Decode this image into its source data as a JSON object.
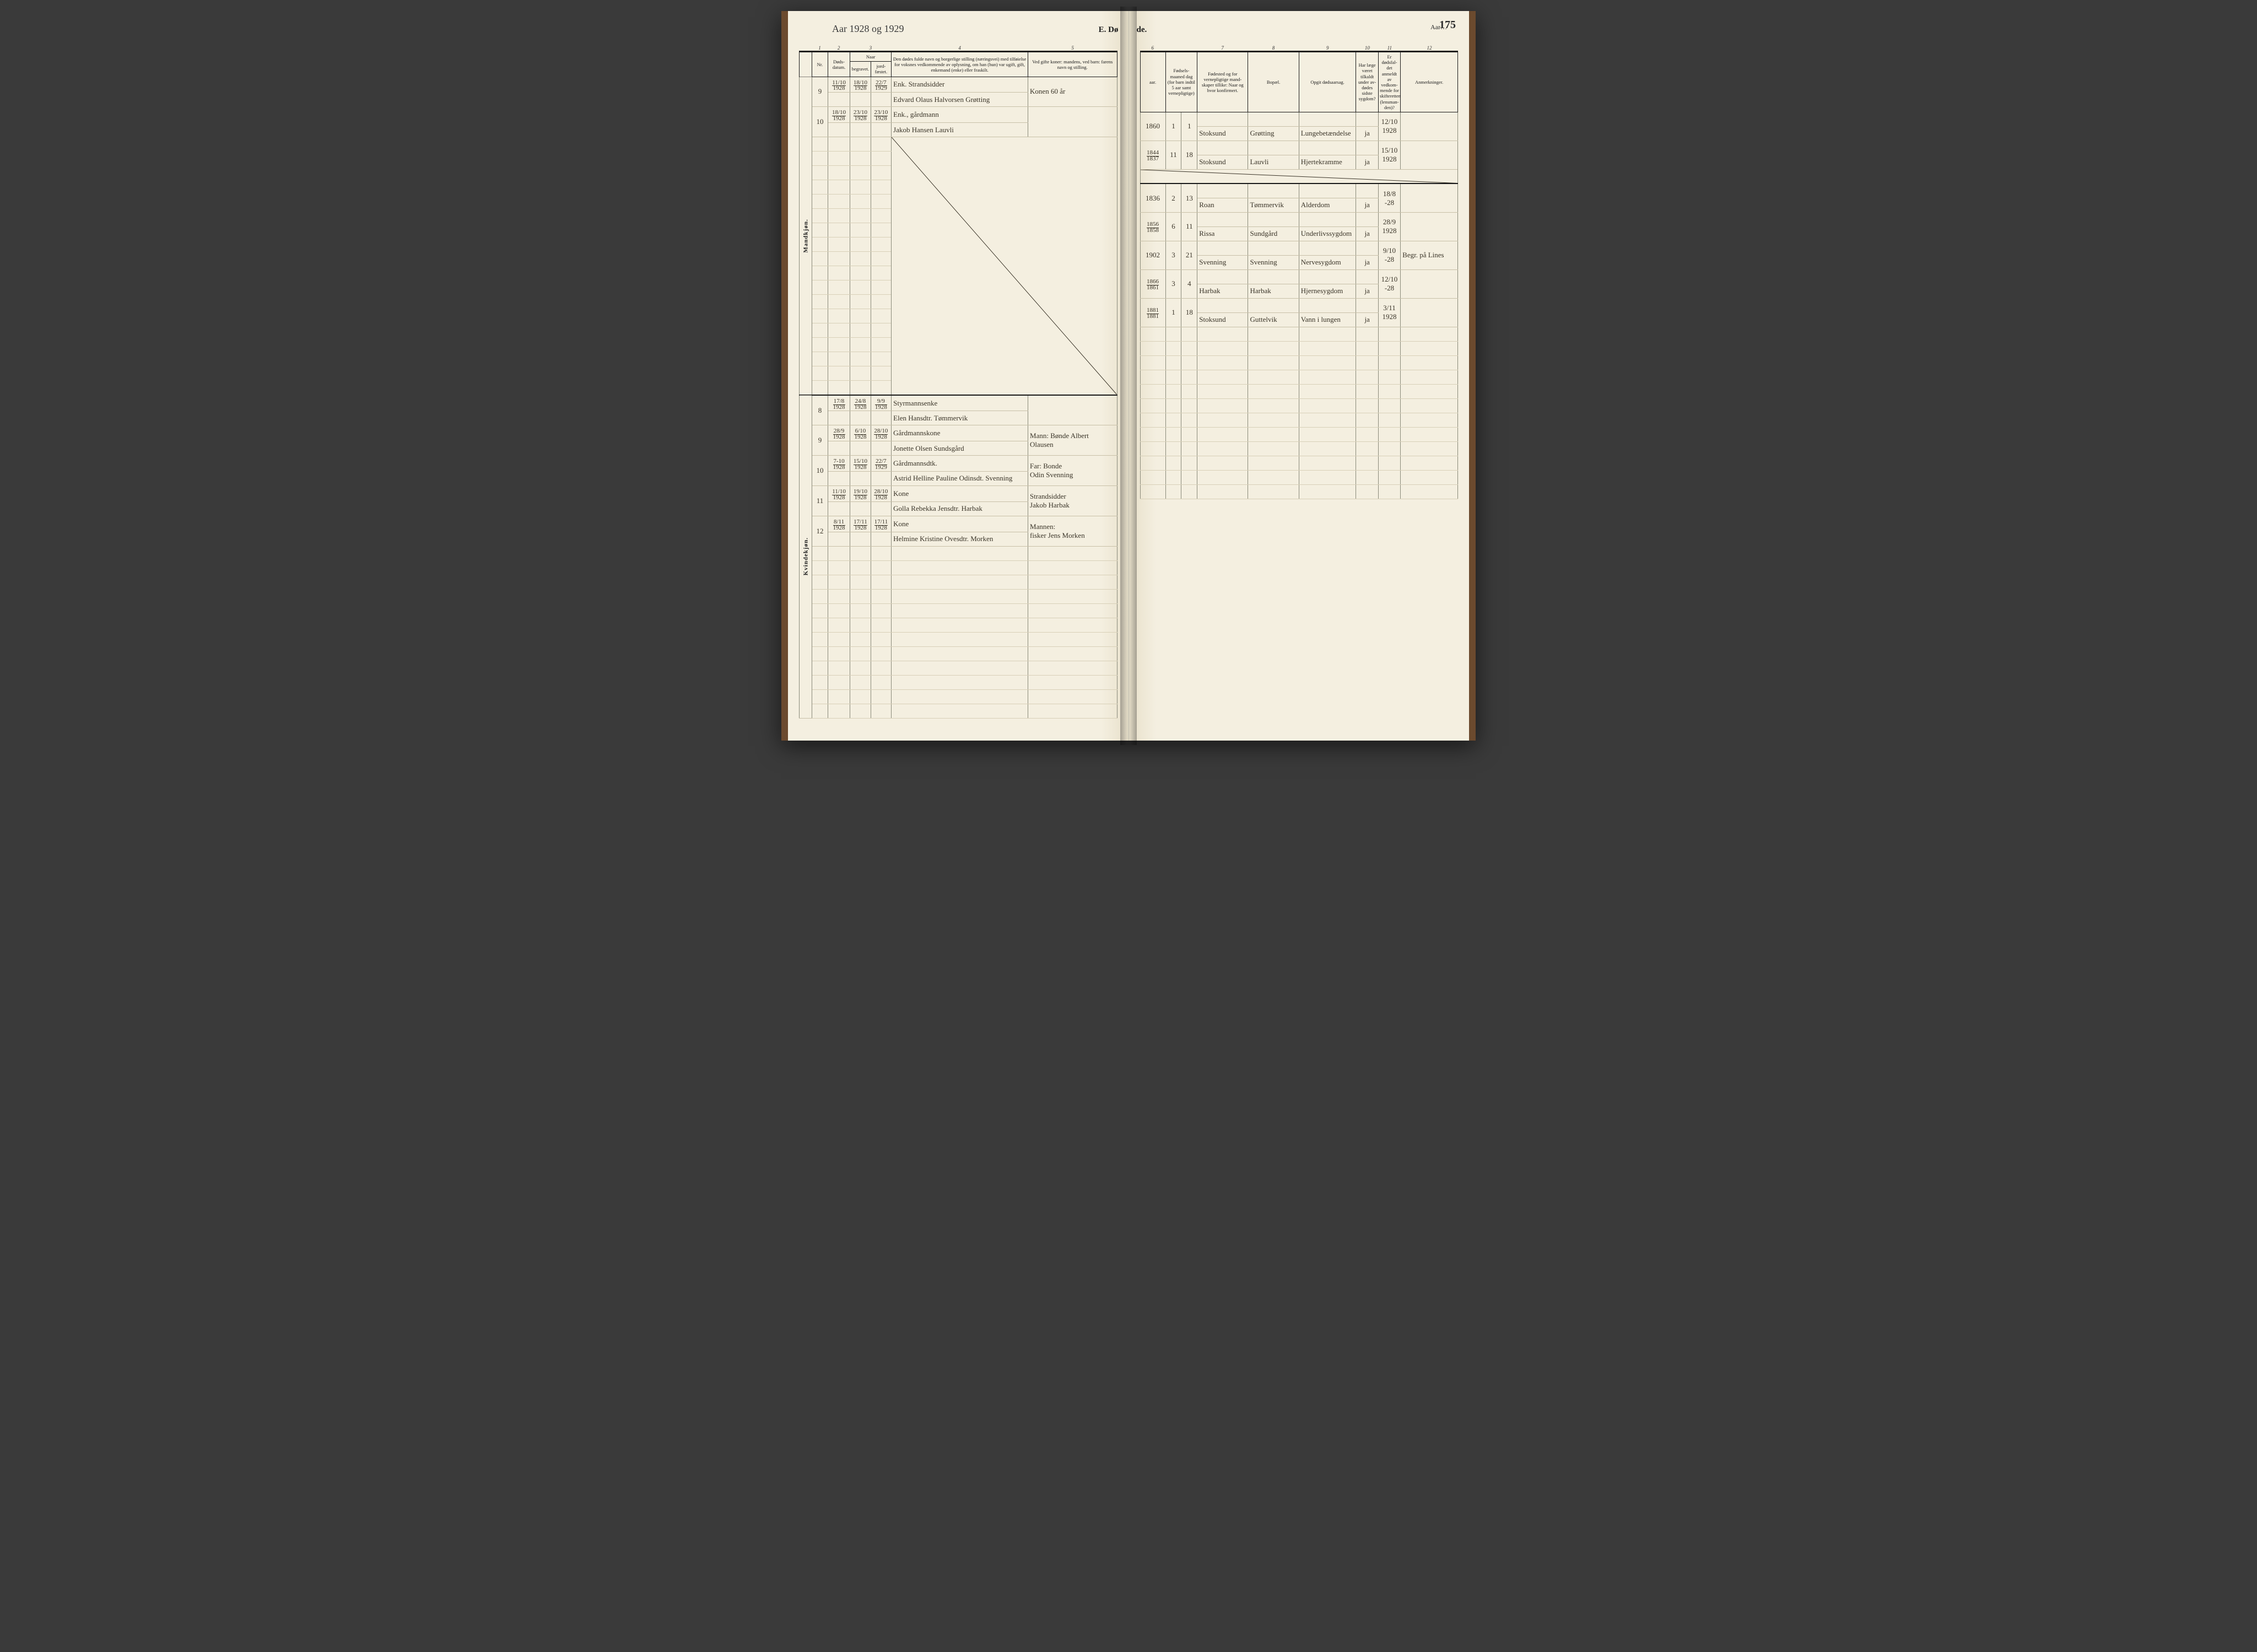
{
  "page_number": "175",
  "year_handwritten": "Aar 1928 og 1929",
  "aar_label_right": "Aar…",
  "section_title_left": "E.  Dø",
  "section_title_right": "de.",
  "section_labels": {
    "male": "Mandkjøn.",
    "female": "Kvindekjøn."
  },
  "col_nums_left": [
    "1",
    "2",
    "3",
    "4",
    "5"
  ],
  "col_nums_right": [
    "6",
    "7",
    "8",
    "9",
    "10",
    "11",
    "12"
  ],
  "headers_left": {
    "nr": "Nr.",
    "dods": "Døds-\ndatum.",
    "naar": "Naar",
    "begravet": "begravet.",
    "jordfaestet": "jord-\nfæstet.",
    "fulde": "Den dødes fulde navn og borgerlige stilling (næringsvei) med tilføielse for voksnes vedkommende av oplysning, om han (hun) var ugift, gift, enkemand (enke) eller fraskilt.",
    "vedgifte": "Ved gifte koner: mandens, ved barn:\nfarens navn og stilling."
  },
  "headers_right": {
    "aar": "aar.",
    "fods": "Fødsels-\nmaaned dag\n(for barn indtil\n5 aar samt\nvernepligtige)",
    "fodested": "Fødested\nog for vernepligtige mand-\nskaper tillike: Naar og hvor\nkonfirmert.",
    "bopael": "Bopæl.",
    "opgit": "Opgit dødsaarsag.",
    "lege": "Har læge\nværet\ntilkaldt\nunder av-\ndødes sidste\nsygdom?",
    "anmeldt": "Er dødsfal-\ndet anmeldt\nav vedkom-\nmende for\nskifteretten\n(lensman-\nden)?",
    "anm": "Anmerkninger."
  },
  "rows_left_male": [
    {
      "nr": "9",
      "dod": "11/10 1928",
      "beg": "18/10 1928",
      "jf": "22/7 1929",
      "name": "Enk. Strandsidder\nEdvard Olaus Halvorsen Grøtting",
      "gifte": "Konen 60 år"
    },
    {
      "nr": "10",
      "dod": "18/10 1928",
      "beg": "23/10 1928",
      "jf": "23/10 1928",
      "name": "Enk., gårdmann\nJakob Hansen Lauvli",
      "gifte": ""
    }
  ],
  "rows_left_female": [
    {
      "nr": "8",
      "dod": "17/8 1928",
      "beg": "24/8 1928",
      "jf": "9/9 1928",
      "name": "Styrmannsenke\nElen Hansdtr. Tømmervik",
      "gifte": ""
    },
    {
      "nr": "9",
      "dod": "28/9 1928",
      "beg": "6/10 1928",
      "jf": "28/10 1928",
      "name": "Gårdmannskone\nJonette Olsen Sundsgård",
      "gifte": "Mann: Bønde Albert\nOlausen"
    },
    {
      "nr": "10",
      "dod": "7-10 1928",
      "beg": "15/10 1928",
      "jf": "22/7 1929",
      "name": "Gårdmannsdtk.\nAstrid Helline Pauline Odinsdt. Svenning",
      "gifte": "Far: Bonde\nOdin Svenning"
    },
    {
      "nr": "11",
      "dod": "11/10 1928",
      "beg": "19/10 1928",
      "jf": "28/10 1928",
      "name": "Kone\nGolla Rebekka Jensdtr. Harbak",
      "gifte": "Strandsidder\nJakob Harbak"
    },
    {
      "nr": "12",
      "dod": "8/11 1928",
      "beg": "17/11 1928",
      "jf": "17/11 1928",
      "name": "Kone\nHelmine Kristine Ovesdtr. Morken",
      "gifte": "Mannen:\nfisker Jens Morken"
    }
  ],
  "rows_right_male": [
    {
      "aar": "1860",
      "m": "1",
      "d": "1",
      "fs": "Stoksund",
      "bp": "Grøtting",
      "cause": "Lungebetændelse",
      "lege": "ja",
      "anm": "12/10 1928",
      "note": ""
    },
    {
      "aar": "1844 / 1837",
      "m": "11",
      "d": "18",
      "fs": "Stoksund",
      "bp": "Lauvli",
      "cause": "Hjertekramme",
      "lege": "ja",
      "anm": "15/10 1928",
      "note": ""
    }
  ],
  "rows_right_female": [
    {
      "aar": "1836",
      "m": "2",
      "d": "13",
      "fs": "Roan",
      "bp": "Tømmervik",
      "cause": "Alderdom",
      "lege": "ja",
      "anm": "18/8 -28",
      "note": ""
    },
    {
      "aar": "1856 / 1858",
      "m": "6",
      "d": "11",
      "fs": "Rissa",
      "bp": "Sundgård",
      "cause": "Underlivssygdom",
      "lege": "ja",
      "anm": "28/9 1928",
      "note": ""
    },
    {
      "aar": "1902",
      "m": "3",
      "d": "21",
      "fs": "Svenning",
      "bp": "Svenning",
      "cause": "Nervesygdom",
      "lege": "ja",
      "anm": "9/10 -28",
      "note": "Begr. på Lines"
    },
    {
      "aar": "1866 / 1861",
      "m": "3",
      "d": "4",
      "fs": "Harbak",
      "bp": "Harbak",
      "cause": "Hjernesygdom",
      "lege": "ja",
      "anm": "12/10 -28",
      "note": ""
    },
    {
      "aar": "1881 / 1881",
      "m": "1",
      "d": "18",
      "fs": "Stoksund",
      "bp": "Guttelvik",
      "cause": "Vann i lungen",
      "lege": "ja",
      "anm": "3/11 1928",
      "note": ""
    }
  ],
  "style": {
    "page_bg": "#f4efe0",
    "ink": "#1a1a1a",
    "hand_ink": "#3a3428",
    "rule": "#8a8a7a",
    "faint_rule": "#c8c0a8",
    "leather": "#6b4a2e",
    "header_fontsize": 8.5,
    "hand_fontsize": 13,
    "title_fontsize": 15
  }
}
